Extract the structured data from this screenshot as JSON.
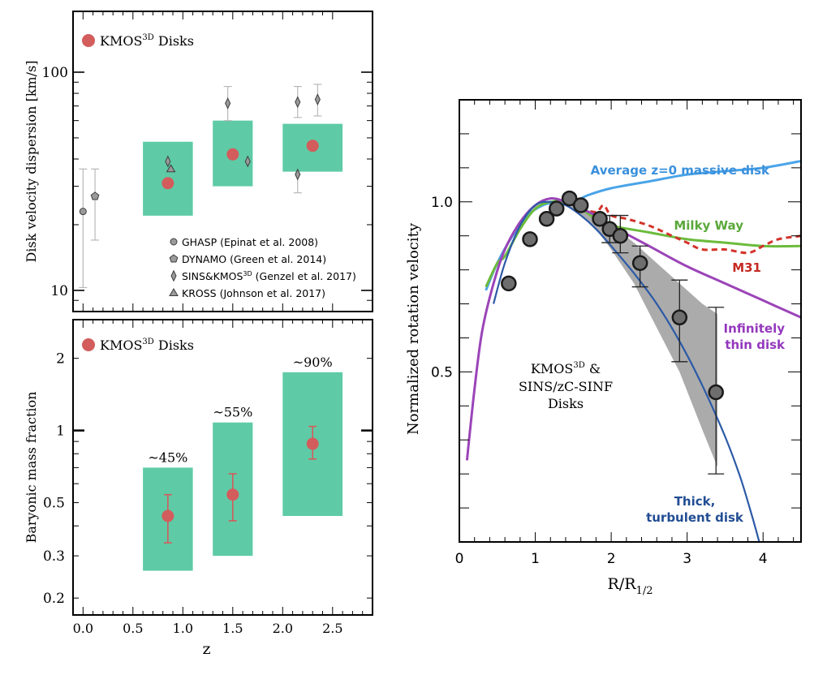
{
  "colors": {
    "box": "#5ecba6",
    "marker": "#d35c5c",
    "errbar_grey": "#b8b8b8",
    "band": "#a7a7a7",
    "circle_fill": "#6e6e6e",
    "avg_disk": "#4aa4e8",
    "milky_way": "#6cbb3c",
    "m31": "#d2332a",
    "thin_disk": "#9b44b8",
    "thick_disk": "#2c5aa6",
    "label_blue": "#3a90dc",
    "label_green": "#5aa83a",
    "label_red": "#c42a22",
    "label_purple": "#9438bd",
    "label_navy": "#224d93"
  },
  "chart_data": [
    {
      "type": "scatter",
      "ylabel": "Disk velocity dispersion [km/s]",
      "yscale": "log",
      "ylim": [
        8,
        190
      ],
      "xlim": [
        -0.1,
        2.9
      ],
      "yticks": [
        {
          "v": 10,
          "label": "10"
        },
        {
          "v": 100,
          "label": "100"
        }
      ],
      "legend_main": "KMOS",
      "legend_main_sup": "3D",
      "legend_main_suffix": " Disks",
      "boxes": [
        {
          "x0": 0.6,
          "x1": 1.1,
          "y0": 22,
          "y1": 48
        },
        {
          "x0": 1.3,
          "x1": 1.7,
          "y0": 30,
          "y1": 60
        },
        {
          "x0": 2.0,
          "x1": 2.6,
          "y0": 35,
          "y1": 58
        }
      ],
      "kmos_points": [
        {
          "x": 0.85,
          "y": 31
        },
        {
          "x": 1.5,
          "y": 42
        },
        {
          "x": 2.3,
          "y": 46
        }
      ],
      "literature": [
        {
          "survey": "GHASP",
          "shape": "circle",
          "x": 0.0,
          "y": 23,
          "ylo": 10.3,
          "yhi": 36
        },
        {
          "survey": "DYNAMO",
          "shape": "pentagon",
          "x": 0.12,
          "y": 27,
          "ylo": 17,
          "yhi": 36
        },
        {
          "survey": "KROSS",
          "shape": "triangle",
          "x": 0.88,
          "y": 36,
          "ylo": null,
          "yhi": null
        },
        {
          "survey": "SINS",
          "shape": "diamond",
          "x": 0.85,
          "y": 39,
          "ylo": null,
          "yhi": null
        },
        {
          "survey": "SINS",
          "shape": "diamond",
          "x": 1.45,
          "y": 72,
          "ylo": 60,
          "yhi": 86
        },
        {
          "survey": "SINS",
          "shape": "diamond",
          "x": 1.65,
          "y": 39,
          "ylo": null,
          "yhi": null
        },
        {
          "survey": "SINS",
          "shape": "diamond",
          "x": 2.15,
          "y": 73,
          "ylo": 62,
          "yhi": 86
        },
        {
          "survey": "SINS",
          "shape": "diamond",
          "x": 2.15,
          "y": 34,
          "ylo": 28,
          "yhi": null
        },
        {
          "survey": "SINS",
          "shape": "diamond",
          "x": 2.35,
          "y": 75,
          "ylo": 63,
          "yhi": 88
        }
      ],
      "legend_items": [
        {
          "shape": "circle",
          "label": "GHASP (Epinat et al. 2008)"
        },
        {
          "shape": "pentagon",
          "label": "DYNAMO (Green et al. 2014)"
        },
        {
          "shape": "diamond",
          "label": "SINS&KMOS",
          "sup": "3D",
          "suffix": " (Genzel et al. 2017)"
        },
        {
          "shape": "triangle",
          "label": "KROSS (Johnson et al. 2017)"
        }
      ]
    },
    {
      "type": "scatter",
      "xlabel": "z",
      "ylabel": "Baryonic mass fraction",
      "yscale": "log",
      "ylim": [
        0.17,
        2.9
      ],
      "xlim": [
        -0.1,
        2.9
      ],
      "yticks": [
        {
          "v": 0.2,
          "label": "0.2"
        },
        {
          "v": 0.3,
          "label": "0.3"
        },
        {
          "v": 0.5,
          "label": "0.5"
        },
        {
          "v": 1,
          "label": "1"
        },
        {
          "v": 2,
          "label": "2"
        }
      ],
      "xticks": [
        {
          "v": 0.0,
          "label": "0.0"
        },
        {
          "v": 0.5,
          "label": "0.5"
        },
        {
          "v": 1.0,
          "label": "1.0"
        },
        {
          "v": 1.5,
          "label": "1.5"
        },
        {
          "v": 2.0,
          "label": "2.0"
        },
        {
          "v": 2.5,
          "label": "2.5"
        }
      ],
      "legend_main": "KMOS",
      "legend_main_sup": "3D",
      "legend_main_suffix": " Disks",
      "boxes": [
        {
          "x0": 0.6,
          "x1": 1.1,
          "y0": 0.26,
          "y1": 0.7,
          "label": "~45%"
        },
        {
          "x0": 1.3,
          "x1": 1.7,
          "y0": 0.3,
          "y1": 1.08,
          "label": "~55%"
        },
        {
          "x0": 2.0,
          "x1": 2.6,
          "y0": 0.44,
          "y1": 1.75,
          "label": "~90%"
        }
      ],
      "points": [
        {
          "x": 0.85,
          "y": 0.44,
          "ylo": 0.34,
          "yhi": 0.54
        },
        {
          "x": 1.5,
          "y": 0.54,
          "ylo": 0.42,
          "yhi": 0.66
        },
        {
          "x": 2.3,
          "y": 0.88,
          "ylo": 0.76,
          "yhi": 1.04
        }
      ]
    },
    {
      "type": "line",
      "xlabel": "R/R",
      "xlabel_sub": "1/2",
      "ylabel": "Normalized rotation velocity",
      "xlim": [
        0,
        4.5
      ],
      "ylim": [
        0,
        1.3
      ],
      "xticks": [
        {
          "v": 0,
          "label": "0"
        },
        {
          "v": 1,
          "label": "1"
        },
        {
          "v": 2,
          "label": "2"
        },
        {
          "v": 3,
          "label": "3"
        },
        {
          "v": 4,
          "label": "4"
        }
      ],
      "yticks": [
        {
          "v": 0.5,
          "label": "0.5"
        },
        {
          "v": 1.0,
          "label": "1.0"
        }
      ],
      "annotation": [
        "KMOS",
        "3D",
        " &",
        "SINS/zC-SINF",
        "Disks"
      ],
      "series": [
        {
          "key": "avg",
          "label": "Average z=0 massive disk",
          "x": [
            0.35,
            0.5,
            0.7,
            0.9,
            1.1,
            1.3,
            1.5,
            1.7,
            2.0,
            2.5,
            3.0,
            3.5,
            4.0,
            4.5
          ],
          "y": [
            0.74,
            0.82,
            0.9,
            0.96,
            0.99,
            1.0,
            1.0,
            1.02,
            1.04,
            1.06,
            1.08,
            1.09,
            1.1,
            1.12
          ]
        },
        {
          "key": "mw",
          "label": "Milky Way",
          "x": [
            0.35,
            0.5,
            0.6,
            0.8,
            1.0,
            1.2,
            1.4,
            1.6,
            1.8,
            2.0,
            2.5,
            3.0,
            3.5,
            4.0,
            4.5
          ],
          "y": [
            0.75,
            0.82,
            0.84,
            0.92,
            0.98,
            1.0,
            1.0,
            0.98,
            0.95,
            0.93,
            0.91,
            0.89,
            0.88,
            0.87,
            0.87
          ]
        },
        {
          "key": "m31",
          "label": "M31",
          "x": [
            1.6,
            1.8,
            1.9,
            2.0,
            2.2,
            2.5,
            2.8,
            3.0,
            3.2,
            3.5,
            3.8,
            4.0,
            4.2,
            4.5
          ],
          "y": [
            0.98,
            0.97,
            0.99,
            0.96,
            0.95,
            0.93,
            0.9,
            0.88,
            0.86,
            0.86,
            0.85,
            0.87,
            0.89,
            0.9
          ]
        },
        {
          "key": "thin",
          "label": "Infinitely thin disk",
          "x": [
            0.1,
            0.2,
            0.3,
            0.45,
            0.6,
            0.8,
            1.0,
            1.2,
            1.4,
            1.6,
            1.8,
            2.0,
            2.5,
            3.0,
            3.5,
            4.0,
            4.5
          ],
          "y": [
            0.24,
            0.45,
            0.62,
            0.76,
            0.86,
            0.94,
            0.99,
            1.01,
            1.0,
            0.98,
            0.96,
            0.93,
            0.87,
            0.81,
            0.76,
            0.71,
            0.66
          ]
        },
        {
          "key": "thick",
          "label": "Thick, turbulent disk",
          "x": [
            0.45,
            0.6,
            0.8,
            1.0,
            1.2,
            1.4,
            1.6,
            1.8,
            2.0,
            2.3,
            2.6,
            2.9,
            3.2,
            3.5,
            3.7,
            3.85,
            3.95
          ],
          "y": [
            0.7,
            0.82,
            0.93,
            0.99,
            1.0,
            0.99,
            0.96,
            0.92,
            0.87,
            0.79,
            0.7,
            0.59,
            0.46,
            0.31,
            0.19,
            0.08,
            0.0
          ]
        }
      ],
      "band": {
        "x": [
          1.4,
          1.6,
          1.8,
          2.0,
          2.3,
          2.6,
          2.9,
          3.2,
          3.4
        ],
        "upper": [
          1.02,
          0.99,
          0.96,
          0.93,
          0.88,
          0.82,
          0.76,
          0.7,
          0.67
        ],
        "lower": [
          0.99,
          0.96,
          0.92,
          0.86,
          0.76,
          0.63,
          0.5,
          0.33,
          0.22
        ]
      },
      "points": [
        {
          "x": 0.65,
          "y": 0.76,
          "ylo": null,
          "yhi": null
        },
        {
          "x": 0.93,
          "y": 0.89,
          "ylo": null,
          "yhi": null
        },
        {
          "x": 1.15,
          "y": 0.95,
          "ylo": null,
          "yhi": null
        },
        {
          "x": 1.28,
          "y": 0.98,
          "ylo": null,
          "yhi": null
        },
        {
          "x": 1.45,
          "y": 1.01,
          "ylo": null,
          "yhi": null
        },
        {
          "x": 1.6,
          "y": 0.99,
          "ylo": null,
          "yhi": null
        },
        {
          "x": 1.85,
          "y": 0.95,
          "ylo": null,
          "yhi": null
        },
        {
          "x": 1.98,
          "y": 0.92,
          "ylo": 0.88,
          "yhi": 0.96
        },
        {
          "x": 2.12,
          "y": 0.9,
          "ylo": 0.85,
          "yhi": 0.96
        },
        {
          "x": 2.38,
          "y": 0.82,
          "ylo": 0.75,
          "yhi": 0.87
        },
        {
          "x": 2.9,
          "y": 0.66,
          "ylo": 0.53,
          "yhi": 0.77
        },
        {
          "x": 3.38,
          "y": 0.44,
          "ylo": 0.2,
          "yhi": 0.69
        }
      ]
    }
  ]
}
